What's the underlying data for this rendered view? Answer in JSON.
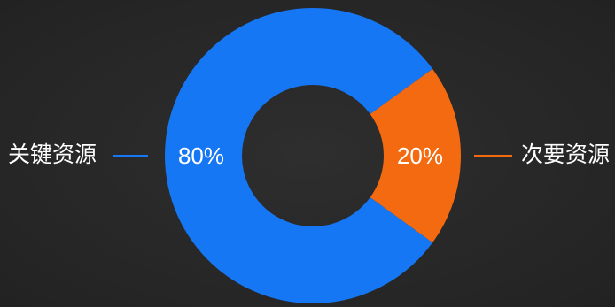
{
  "chart_data": {
    "type": "pie",
    "variant": "donut",
    "title": "",
    "legend": "none",
    "categories": [
      "关键资源",
      "次要资源"
    ],
    "values": [
      80,
      20
    ],
    "value_labels": [
      "80%",
      "20%"
    ],
    "colors": [
      "#1677f5",
      "#f46a10"
    ],
    "background": "#262626"
  }
}
